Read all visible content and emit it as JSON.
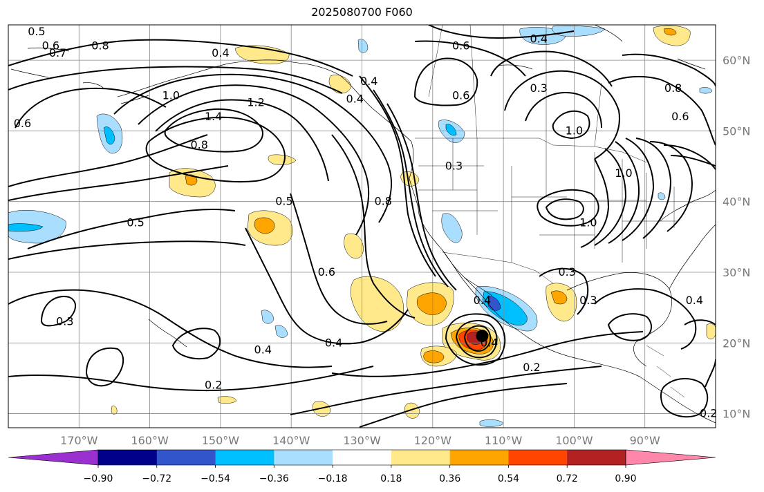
{
  "title": "2025080700 F060",
  "map": {
    "lon_range": [
      -180,
      -80
    ],
    "lat_range": [
      8,
      65
    ],
    "lon_ticks": [
      {
        "lon": -170,
        "label": "170°W"
      },
      {
        "lon": -160,
        "label": "160°W"
      },
      {
        "lon": -150,
        "label": "150°W"
      },
      {
        "lon": -140,
        "label": "140°W"
      },
      {
        "lon": -130,
        "label": "130°W"
      },
      {
        "lon": -120,
        "label": "120°W"
      },
      {
        "lon": -110,
        "label": "110°W"
      },
      {
        "lon": -100,
        "label": "100°W"
      },
      {
        "lon": -90,
        "label": "90°W"
      }
    ],
    "lat_ticks": [
      {
        "lat": 60,
        "label": "60°N"
      },
      {
        "lat": 50,
        "label": "50°N"
      },
      {
        "lat": 40,
        "label": "40°N"
      },
      {
        "lat": 30,
        "label": "30°N"
      },
      {
        "lat": 20,
        "label": "20°N"
      },
      {
        "lat": 10,
        "label": "10°N"
      }
    ],
    "grid": true,
    "contour_labels": [
      {
        "text": "0.5",
        "lon": -176,
        "lat": 64
      },
      {
        "text": "0.6",
        "lon": -174,
        "lat": 62
      },
      {
        "text": "0.7",
        "lon": -173,
        "lat": 61
      },
      {
        "text": "0.8",
        "lon": -167,
        "lat": 62
      },
      {
        "text": "0.6",
        "lon": -178,
        "lat": 51
      },
      {
        "text": "0.4",
        "lon": -150,
        "lat": 61
      },
      {
        "text": "1.0",
        "lon": -157,
        "lat": 55
      },
      {
        "text": "1.4",
        "lon": -151,
        "lat": 52
      },
      {
        "text": "1.2",
        "lon": -145,
        "lat": 54
      },
      {
        "text": "0.8",
        "lon": -153,
        "lat": 48
      },
      {
        "text": "0.5",
        "lon": -162,
        "lat": 37
      },
      {
        "text": "0.5",
        "lon": -141,
        "lat": 40
      },
      {
        "text": "0.4",
        "lon": -129,
        "lat": 57
      },
      {
        "text": "0.4",
        "lon": -131,
        "lat": 54.5
      },
      {
        "text": "0.8",
        "lon": -127,
        "lat": 40
      },
      {
        "text": "0.6",
        "lon": -135,
        "lat": 30
      },
      {
        "text": "0.3",
        "lon": -117,
        "lat": 45
      },
      {
        "text": "0.6",
        "lon": -116,
        "lat": 62
      },
      {
        "text": "0.6",
        "lon": -116,
        "lat": 55
      },
      {
        "text": "0.4",
        "lon": -105,
        "lat": 63
      },
      {
        "text": "0.3",
        "lon": -105,
        "lat": 56
      },
      {
        "text": "1.0",
        "lon": -100,
        "lat": 50
      },
      {
        "text": "0.8",
        "lon": -86,
        "lat": 56
      },
      {
        "text": "0.6",
        "lon": -85,
        "lat": 52
      },
      {
        "text": "1.0",
        "lon": -93,
        "lat": 44
      },
      {
        "text": "1.0",
        "lon": -98,
        "lat": 37
      },
      {
        "text": "0.3",
        "lon": -101,
        "lat": 30
      },
      {
        "text": "0.3",
        "lon": -98,
        "lat": 26
      },
      {
        "text": "0.4",
        "lon": -83,
        "lat": 26
      },
      {
        "text": "0.4",
        "lon": -113,
        "lat": 26
      },
      {
        "text": "0.4",
        "lon": -112,
        "lat": 20
      },
      {
        "text": "0.2",
        "lon": -106,
        "lat": 16.5
      },
      {
        "text": "0.4",
        "lon": -134,
        "lat": 20
      },
      {
        "text": "0.4",
        "lon": -144,
        "lat": 19
      },
      {
        "text": "0.3",
        "lon": -172,
        "lat": 23
      },
      {
        "text": "0.2",
        "lon": -151,
        "lat": 14
      },
      {
        "text": "0.2",
        "lon": -81,
        "lat": 10
      }
    ],
    "storm_marker": {
      "lon": -113,
      "lat": 21
    }
  },
  "colorbar": {
    "colors": [
      "#9b30d0",
      "#00008b",
      "#3355cc",
      "#00bfff",
      "#aadeff",
      "#ffffff",
      "#ffe98a",
      "#ffa500",
      "#ff4500",
      "#b22222",
      "#ff88aa"
    ],
    "tick_labels": [
      "−0.90",
      "−0.72",
      "−0.54",
      "−0.36",
      "−0.18",
      "0.18",
      "0.36",
      "0.54",
      "0.72",
      "0.90"
    ]
  }
}
